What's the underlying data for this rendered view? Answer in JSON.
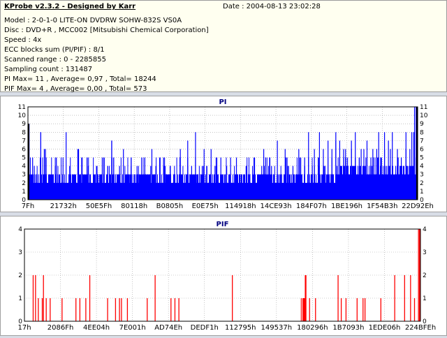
{
  "header": {
    "title": "KProbe v2.3.2 - Designed by Karr",
    "date": "Date : 2004-08-13 23:02:28",
    "lines": [
      "Model : 2-0-1-0 LITE-ON DVDRW SOHW-832S  VS0A",
      "Disc : DVD+R , MCC002 [Mitsubishi Chemical Corporation]",
      "Speed : 4x",
      "ECC blocks sum (PI/PIF) : 8/1",
      "Scanned range : 0 - 2285855",
      "Sampling count : 131487",
      "PI Max= 11 , Average= 0,97 , Total= 18244",
      "PIF Max= 4 , Average= 0,00 , Total= 573"
    ]
  },
  "colors": {
    "pi": "#0000ff",
    "pif": "#ff0000",
    "title": "#000080",
    "grid": "#a0a0a0",
    "plot_bg": "#ffffff"
  },
  "chart_data": [
    {
      "type": "bar",
      "title": "PI",
      "ylim": [
        0,
        11
      ],
      "yticks": [
        0,
        1,
        2,
        3,
        4,
        5,
        6,
        7,
        8,
        9,
        10,
        11
      ],
      "xlim": [
        0,
        2285855
      ],
      "xtick_labels": [
        "7Fh",
        "21732h",
        "50E5Fh",
        "80118h",
        "B0805h",
        "E0E75h",
        "114918h",
        "14CE93h",
        "184F07h",
        "1BE196h",
        "1F54B3h",
        "22D92Eh"
      ],
      "grid": true,
      "peaks": [
        [
          0.012,
          5
        ],
        [
          0.033,
          8
        ],
        [
          0.045,
          6
        ],
        [
          0.07,
          4
        ],
        [
          0.09,
          5
        ],
        [
          0.13,
          6
        ],
        [
          0.155,
          4
        ],
        [
          0.205,
          4
        ],
        [
          0.215,
          7
        ],
        [
          0.22,
          5
        ],
        [
          0.235,
          4
        ],
        [
          0.265,
          5
        ],
        [
          0.3,
          5
        ],
        [
          0.315,
          4
        ],
        [
          0.348,
          5
        ],
        [
          0.365,
          4
        ],
        [
          0.39,
          5
        ],
        [
          0.41,
          7
        ],
        [
          0.42,
          4
        ],
        [
          0.43,
          8
        ],
        [
          0.45,
          4
        ],
        [
          0.48,
          4
        ],
        [
          0.52,
          5
        ],
        [
          0.56,
          4
        ],
        [
          0.6,
          4
        ],
        [
          0.61,
          5
        ],
        [
          0.625,
          4
        ],
        [
          0.665,
          5
        ],
        [
          0.7,
          5
        ],
        [
          0.71,
          4
        ],
        [
          0.72,
          8
        ],
        [
          0.735,
          4
        ],
        [
          0.745,
          5
        ],
        [
          0.76,
          4
        ],
        [
          0.78,
          6
        ],
        [
          0.79,
          7
        ],
        [
          0.8,
          5
        ],
        [
          0.815,
          6
        ],
        [
          0.83,
          7
        ],
        [
          0.84,
          5
        ],
        [
          0.855,
          6
        ],
        [
          0.87,
          5
        ],
        [
          0.885,
          6
        ],
        [
          0.9,
          8
        ],
        [
          0.915,
          6
        ],
        [
          0.93,
          6
        ],
        [
          0.95,
          5
        ],
        [
          0.97,
          6
        ],
        [
          0.985,
          8
        ],
        [
          0.992,
          11
        ]
      ],
      "spikes": [
        [
          0.003,
          9
        ],
        [
          0.033,
          8
        ],
        [
          0.042,
          6
        ],
        [
          0.073,
          5
        ],
        [
          0.098,
          8
        ],
        [
          0.128,
          6
        ],
        [
          0.152,
          5
        ],
        [
          0.205,
          4
        ],
        [
          0.215,
          7
        ],
        [
          0.245,
          6
        ],
        [
          0.265,
          5
        ],
        [
          0.28,
          4
        ],
        [
          0.318,
          6
        ],
        [
          0.338,
          5
        ],
        [
          0.365,
          4
        ],
        [
          0.391,
          6
        ],
        [
          0.41,
          5
        ],
        [
          0.43,
          5
        ],
        [
          0.452,
          6
        ],
        [
          0.47,
          6
        ],
        [
          0.495,
          5
        ],
        [
          0.51,
          4
        ],
        [
          0.535,
          5
        ],
        [
          0.56,
          4
        ],
        [
          0.58,
          5
        ],
        [
          0.605,
          6
        ],
        [
          0.62,
          5
        ],
        [
          0.64,
          7
        ],
        [
          0.66,
          6
        ],
        [
          0.68,
          4
        ],
        [
          0.695,
          6
        ],
        [
          0.71,
          5
        ],
        [
          0.72,
          5
        ],
        [
          0.735,
          6
        ],
        [
          0.748,
          8
        ],
        [
          0.758,
          6
        ],
        [
          0.77,
          7
        ],
        [
          0.78,
          5
        ],
        [
          0.79,
          8
        ],
        [
          0.8,
          7
        ],
        [
          0.81,
          6
        ],
        [
          0.82,
          5
        ],
        [
          0.83,
          6
        ],
        [
          0.84,
          8
        ],
        [
          0.85,
          5
        ],
        [
          0.862,
          6
        ],
        [
          0.87,
          7
        ],
        [
          0.88,
          5
        ],
        [
          0.895,
          6
        ],
        [
          0.905,
          5
        ],
        [
          0.915,
          8
        ],
        [
          0.925,
          7
        ],
        [
          0.935,
          8
        ],
        [
          0.948,
          6
        ],
        [
          0.958,
          5
        ],
        [
          0.97,
          8
        ],
        [
          0.98,
          6
        ],
        [
          0.99,
          8
        ],
        [
          0.996,
          11
        ]
      ]
    },
    {
      "type": "bar",
      "title": "PIF",
      "ylim": [
        0,
        4
      ],
      "yticks": [
        0,
        1,
        2,
        3,
        4
      ],
      "xlim": [
        0,
        2285855
      ],
      "xtick_labels": [
        "17h",
        "2086Fh",
        "4EE04h",
        "7E001h",
        "AD74Eh",
        "DEDF1h",
        "112795h",
        "149537h",
        "180296h",
        "1B7093h",
        "1EDE06h",
        "224BFEh"
      ],
      "grid": true,
      "spikes": [
        [
          0.022,
          2
        ],
        [
          0.028,
          2
        ],
        [
          0.035,
          1
        ],
        [
          0.045,
          1
        ],
        [
          0.048,
          2
        ],
        [
          0.055,
          1
        ],
        [
          0.065,
          1
        ],
        [
          0.095,
          1
        ],
        [
          0.13,
          1
        ],
        [
          0.14,
          1
        ],
        [
          0.155,
          1
        ],
        [
          0.165,
          2
        ],
        [
          0.21,
          1
        ],
        [
          0.23,
          1
        ],
        [
          0.24,
          1
        ],
        [
          0.245,
          1
        ],
        [
          0.26,
          1
        ],
        [
          0.31,
          1
        ],
        [
          0.33,
          2
        ],
        [
          0.37,
          1
        ],
        [
          0.38,
          1
        ],
        [
          0.39,
          1
        ],
        [
          0.525,
          2
        ],
        [
          0.72,
          1
        ],
        [
          0.735,
          1
        ],
        [
          0.792,
          2
        ],
        [
          0.8,
          1
        ],
        [
          0.812,
          1
        ],
        [
          0.84,
          1
        ],
        [
          0.855,
          1
        ],
        [
          0.86,
          1
        ],
        [
          0.9,
          1
        ],
        [
          0.935,
          2
        ],
        [
          0.96,
          2
        ],
        [
          0.975,
          2
        ],
        [
          0.985,
          1
        ],
        [
          0.995,
          4
        ]
      ],
      "clusters": [
        [
          0.702,
          0.71,
          1
        ],
        [
          0.708,
          0.712,
          2
        ],
        [
          0.698,
          0.7,
          1
        ]
      ]
    }
  ]
}
